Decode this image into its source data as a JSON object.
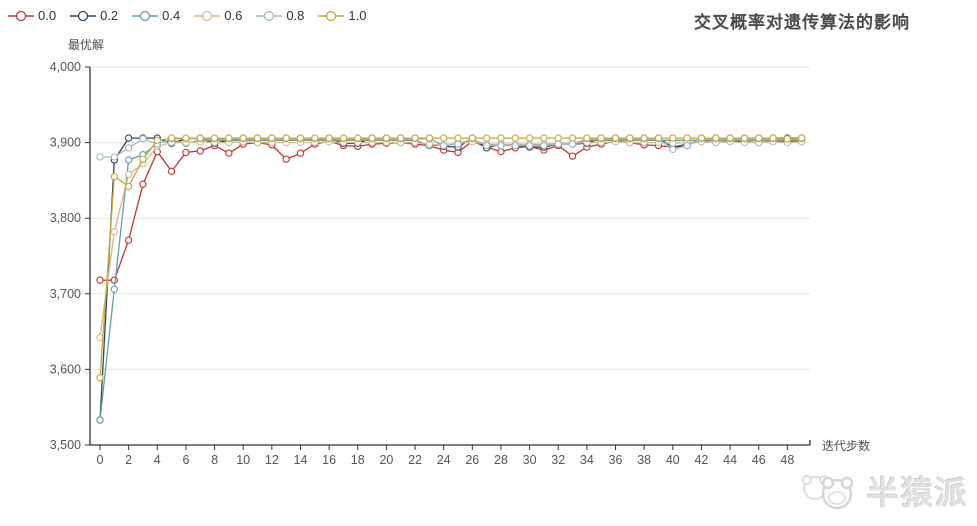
{
  "header": {
    "title": "交叉概率对遗传算法的影响"
  },
  "axes": {
    "y_name": "最优解",
    "x_name": "迭代步数"
  },
  "watermark": {
    "text": "半猿派"
  },
  "colors": {
    "axis": "#333333",
    "grid": "#e4e4e4",
    "tick_label": "#555555",
    "marker_fill": "#ffffff"
  },
  "chart_data": {
    "type": "line",
    "title": "交叉概率对遗传算法的影响",
    "xlabel": "迭代步数",
    "ylabel": "最优解",
    "legend_position": "top-left",
    "grid": true,
    "ylim": [
      3500,
      4000
    ],
    "y_tick_values": [
      3500,
      3600,
      3700,
      3800,
      3900,
      4000
    ],
    "y_tick_labels": [
      "3,500",
      "3,600",
      "3,700",
      "3,800",
      "3,900",
      "4,000"
    ],
    "x_tick_step": 2,
    "x": [
      0,
      1,
      2,
      3,
      4,
      5,
      6,
      7,
      8,
      9,
      10,
      11,
      12,
      13,
      14,
      15,
      16,
      17,
      18,
      19,
      20,
      21,
      22,
      23,
      24,
      25,
      26,
      27,
      28,
      29,
      30,
      31,
      32,
      33,
      34,
      35,
      36,
      37,
      38,
      39,
      40,
      41,
      42,
      43,
      44,
      45,
      46,
      47,
      48,
      49
    ],
    "series": [
      {
        "name": "0.0",
        "color": "#c23531",
        "values": [
          3718,
          3718,
          3771,
          3845,
          3888,
          3862,
          3887,
          3889,
          3896,
          3886,
          3898,
          3900,
          3897,
          3878,
          3886,
          3898,
          3902,
          3896,
          3895,
          3898,
          3899,
          3900,
          3898,
          3896,
          3890,
          3887,
          3902,
          3894,
          3888,
          3893,
          3895,
          3890,
          3896,
          3882,
          3894,
          3898,
          3902,
          3900,
          3897,
          3896,
          3894,
          3898,
          3902,
          3900,
          3902,
          3901,
          3900,
          3902,
          3901,
          3903
        ]
      },
      {
        "name": "0.2",
        "color": "#2f4554",
        "values": [
          3533,
          3877,
          3906,
          3906,
          3906,
          3899,
          3905,
          3906,
          3899,
          3903,
          3906,
          3906,
          3906,
          3906,
          3906,
          3903,
          3906,
          3899,
          3899,
          3906,
          3906,
          3906,
          3906,
          3906,
          3895,
          3894,
          3906,
          3893,
          3898,
          3896,
          3894,
          3894,
          3898,
          3898,
          3899,
          3906,
          3906,
          3906,
          3906,
          3906,
          3894,
          3896,
          3906,
          3906,
          3906,
          3906,
          3906,
          3906,
          3906,
          3906
        ]
      },
      {
        "name": "0.4",
        "color": "#61a0a8",
        "values": [
          3533,
          3706,
          3877,
          3884,
          3899,
          3903,
          3899,
          3903,
          3903,
          3903,
          3903,
          3903,
          3903,
          3903,
          3903,
          3903,
          3903,
          3903,
          3903,
          3903,
          3903,
          3903,
          3903,
          3896,
          3897,
          3899,
          3903,
          3897,
          3897,
          3897,
          3897,
          3897,
          3899,
          3899,
          3903,
          3903,
          3903,
          3903,
          3903,
          3903,
          3903,
          3903,
          3903,
          3903,
          3903,
          3903,
          3903,
          3903,
          3903,
          3903
        ]
      },
      {
        "name": "0.6",
        "color": "#d5b88c",
        "values": [
          3642,
          3782,
          3858,
          3872,
          3895,
          3900,
          3900,
          3901,
          3900,
          3900,
          3901,
          3900,
          3900,
          3900,
          3900,
          3900,
          3901,
          3900,
          3900,
          3900,
          3900,
          3900,
          3900,
          3898,
          3897,
          3899,
          3901,
          3898,
          3898,
          3898,
          3898,
          3898,
          3899,
          3899,
          3900,
          3900,
          3901,
          3900,
          3900,
          3900,
          3899,
          3900,
          3901,
          3900,
          3901,
          3900,
          3900,
          3901,
          3900,
          3901
        ]
      },
      {
        "name": "0.8",
        "color": "#9fb9c3",
        "values": [
          3881,
          3881,
          3893,
          3905,
          3898,
          3905,
          3905,
          3905,
          3905,
          3905,
          3905,
          3905,
          3905,
          3905,
          3905,
          3905,
          3905,
          3905,
          3905,
          3905,
          3905,
          3905,
          3905,
          3905,
          3896,
          3898,
          3905,
          3896,
          3896,
          3896,
          3896,
          3896,
          3898,
          3898,
          3905,
          3905,
          3905,
          3905,
          3905,
          3905,
          3891,
          3896,
          3905,
          3905,
          3905,
          3905,
          3905,
          3905,
          3905,
          3905
        ]
      },
      {
        "name": "1.0",
        "color": "#c9a53c",
        "values": [
          3589,
          3855,
          3842,
          3878,
          3903,
          3906,
          3906,
          3906,
          3906,
          3906,
          3906,
          3906,
          3906,
          3906,
          3906,
          3906,
          3906,
          3906,
          3906,
          3906,
          3906,
          3906,
          3906,
          3906,
          3906,
          3906,
          3906,
          3906,
          3906,
          3906,
          3906,
          3906,
          3906,
          3906,
          3906,
          3906,
          3906,
          3906,
          3906,
          3906,
          3906,
          3906,
          3906,
          3906,
          3906,
          3906,
          3906,
          3906,
          3905,
          3906
        ]
      }
    ]
  }
}
